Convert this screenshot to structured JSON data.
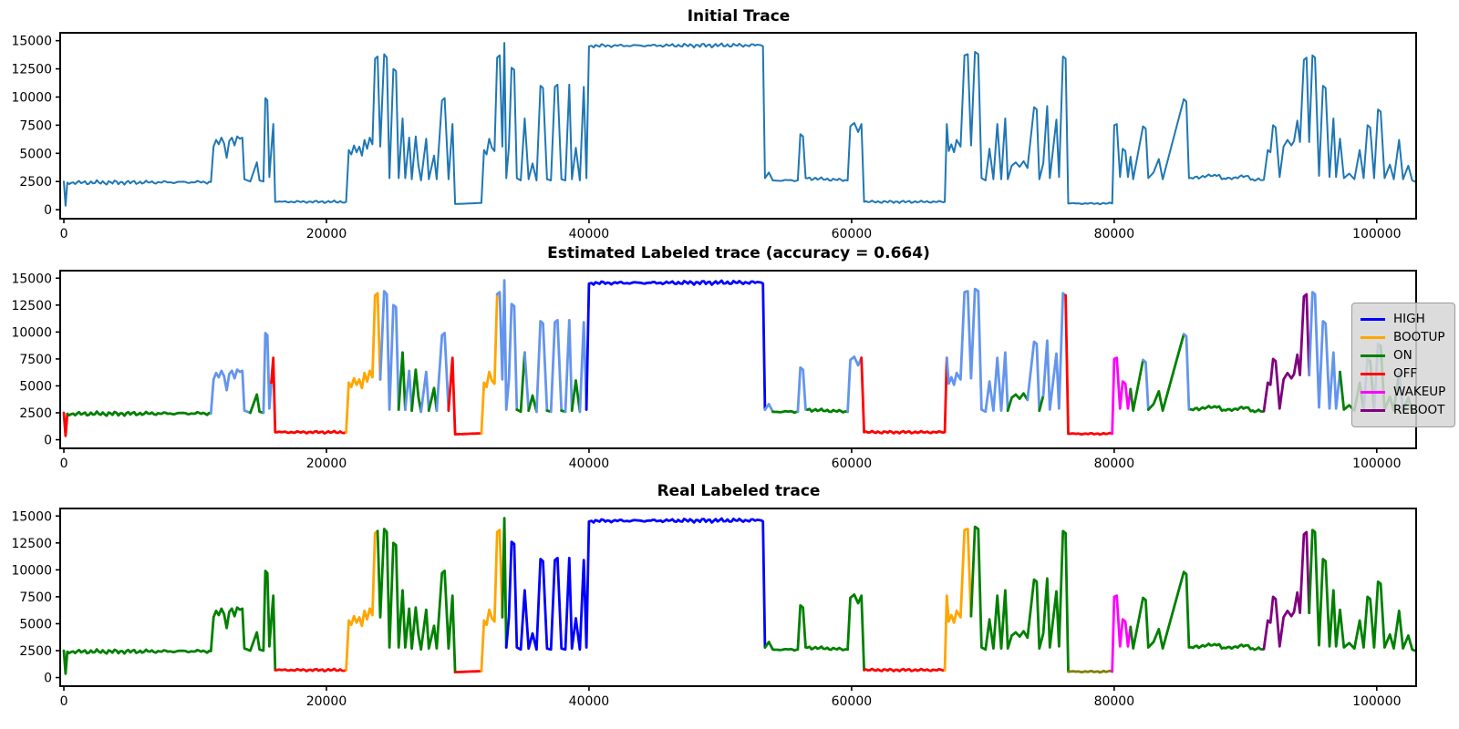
{
  "figure": {
    "background": "#ffffff"
  },
  "palette": {
    "steelblue": "#1f77b4",
    "blue": "#0000ff",
    "cornflower": "#6495ed",
    "green": "#008000",
    "red": "#ff0000",
    "orange": "#ffa500",
    "magenta": "#ff00ff",
    "purple": "#800080",
    "olive": "#808000"
  },
  "chart_data": {
    "type": "line",
    "xlim": [
      -280,
      103000
    ],
    "ylim": [
      -800,
      15700
    ],
    "xticks": {
      "values": [
        0,
        20000,
        40000,
        60000,
        80000,
        100000
      ],
      "labels": [
        "0",
        "20000",
        "40000",
        "60000",
        "80000",
        "100000"
      ]
    },
    "yticks": {
      "values": [
        0,
        2500,
        5000,
        7500,
        10000,
        12500,
        15000
      ],
      "labels": [
        "0",
        "2500",
        "5000",
        "7500",
        "10000",
        "12500",
        "15000"
      ]
    },
    "grid": false,
    "subplots": [
      {
        "title": "Initial Trace",
        "line_width": 2,
        "label_intervals": [
          [
            -280,
            103000,
            "steelblue"
          ]
        ]
      },
      {
        "title": "Estimated Labeled trace (accuracy = 0.664)",
        "accuracy": 0.664,
        "line_width": 2.8,
        "label_intervals": [
          [
            -280,
            280,
            "red"
          ],
          [
            280,
            11250,
            "green"
          ],
          [
            11250,
            14050,
            "cornflower"
          ],
          [
            14050,
            15150,
            "green"
          ],
          [
            15150,
            15750,
            "cornflower"
          ],
          [
            15750,
            21600,
            "red"
          ],
          [
            21600,
            24250,
            "orange"
          ],
          [
            24250,
            25650,
            "cornflower"
          ],
          [
            25650,
            26150,
            "green"
          ],
          [
            26150,
            26650,
            "cornflower"
          ],
          [
            26650,
            27400,
            "green"
          ],
          [
            27400,
            27950,
            "cornflower"
          ],
          [
            27950,
            28600,
            "green"
          ],
          [
            28600,
            29450,
            "cornflower"
          ],
          [
            29450,
            31900,
            "red"
          ],
          [
            31900,
            32950,
            "orange"
          ],
          [
            32950,
            34650,
            "cornflower"
          ],
          [
            34650,
            35000,
            "green"
          ],
          [
            35000,
            35550,
            "cornflower"
          ],
          [
            35550,
            36150,
            "green"
          ],
          [
            36150,
            36950,
            "cornflower"
          ],
          [
            36950,
            37250,
            "green"
          ],
          [
            37250,
            38050,
            "cornflower"
          ],
          [
            38050,
            38350,
            "green"
          ],
          [
            38350,
            38850,
            "cornflower"
          ],
          [
            38850,
            39450,
            "green"
          ],
          [
            39450,
            39900,
            "cornflower"
          ],
          [
            39900,
            53350,
            "blue"
          ],
          [
            53350,
            53900,
            "cornflower"
          ],
          [
            53900,
            56000,
            "green"
          ],
          [
            56000,
            56600,
            "cornflower"
          ],
          [
            56600,
            59800,
            "green"
          ],
          [
            59800,
            60850,
            "cornflower"
          ],
          [
            60850,
            67200,
            "red"
          ],
          [
            67200,
            72050,
            "cornflower"
          ],
          [
            72050,
            73600,
            "green"
          ],
          [
            73600,
            74250,
            "cornflower"
          ],
          [
            74250,
            74750,
            "green"
          ],
          [
            74750,
            76400,
            "cornflower"
          ],
          [
            76400,
            79800,
            "red"
          ],
          [
            79800,
            81350,
            "magenta"
          ],
          [
            81350,
            82050,
            "green"
          ],
          [
            82050,
            82700,
            "cornflower"
          ],
          [
            82700,
            85150,
            "green"
          ],
          [
            85150,
            85850,
            "cornflower"
          ],
          [
            85850,
            91550,
            "green"
          ],
          [
            91550,
            94950,
            "purple"
          ],
          [
            94950,
            97350,
            "cornflower"
          ],
          [
            97350,
            99150,
            "green"
          ],
          [
            99150,
            99650,
            "cornflower"
          ],
          [
            99650,
            99950,
            "green"
          ],
          [
            99950,
            100450,
            "cornflower"
          ],
          [
            100450,
            101550,
            "green"
          ],
          [
            101550,
            102150,
            "cornflower"
          ],
          [
            102150,
            103000,
            "green"
          ]
        ]
      },
      {
        "title": "Real Labeled trace",
        "line_width": 2.8,
        "label_intervals": [
          [
            -280,
            16120,
            "green"
          ],
          [
            16120,
            21600,
            "red"
          ],
          [
            21600,
            23950,
            "orange"
          ],
          [
            23950,
            29800,
            "green"
          ],
          [
            29800,
            31850,
            "red"
          ],
          [
            31850,
            33350,
            "orange"
          ],
          [
            33350,
            33650,
            "green"
          ],
          [
            33650,
            53400,
            "blue"
          ],
          [
            53400,
            60900,
            "green"
          ],
          [
            60900,
            67150,
            "red"
          ],
          [
            67150,
            69150,
            "orange"
          ],
          [
            69150,
            76420,
            "green"
          ],
          [
            76420,
            79850,
            "olive"
          ],
          [
            79850,
            81350,
            "magenta"
          ],
          [
            81350,
            91550,
            "green"
          ],
          [
            91550,
            94950,
            "purple"
          ],
          [
            94950,
            103000,
            "green"
          ]
        ]
      }
    ],
    "legend": {
      "location": "right of middle subplot",
      "entries": [
        {
          "label": "HIGH",
          "color": "blue"
        },
        {
          "label": "BOOTUP",
          "color": "orange"
        },
        {
          "label": "ON",
          "color": "green"
        },
        {
          "label": "OFF",
          "color": "red"
        },
        {
          "label": "WAKEUP",
          "color": "magenta"
        },
        {
          "label": "REBOOT",
          "color": "purple"
        }
      ]
    },
    "trace_points": [
      [
        0,
        2500
      ],
      [
        130,
        350
      ],
      [
        260,
        2400
      ],
      [
        11200,
        2450
      ],
      [
        11400,
        5600
      ],
      [
        11600,
        6200
      ],
      [
        11800,
        5800
      ],
      [
        12000,
        6400
      ],
      [
        12200,
        5900
      ],
      [
        12400,
        4600
      ],
      [
        12600,
        6100
      ],
      [
        12800,
        6400
      ],
      [
        13000,
        5700
      ],
      [
        13200,
        6500
      ],
      [
        13400,
        6300
      ],
      [
        13600,
        6400
      ],
      [
        13750,
        2700
      ],
      [
        14200,
        2500
      ],
      [
        14700,
        4200
      ],
      [
        14900,
        2600
      ],
      [
        15200,
        2500
      ],
      [
        15350,
        9900
      ],
      [
        15500,
        9700
      ],
      [
        15650,
        2900
      ],
      [
        15800,
        5300
      ],
      [
        15950,
        7600
      ],
      [
        16100,
        700
      ],
      [
        21500,
        700
      ],
      [
        21700,
        5300
      ],
      [
        21900,
        4900
      ],
      [
        22100,
        5700
      ],
      [
        22300,
        5100
      ],
      [
        22500,
        5600
      ],
      [
        22700,
        4800
      ],
      [
        22900,
        6200
      ],
      [
        23100,
        5400
      ],
      [
        23300,
        6400
      ],
      [
        23500,
        5800
      ],
      [
        23700,
        13400
      ],
      [
        23900,
        13600
      ],
      [
        24100,
        5600
      ],
      [
        24400,
        13800
      ],
      [
        24600,
        13500
      ],
      [
        24800,
        2800
      ],
      [
        25100,
        12500
      ],
      [
        25300,
        12300
      ],
      [
        25500,
        2800
      ],
      [
        25800,
        8100
      ],
      [
        26000,
        2800
      ],
      [
        26300,
        6400
      ],
      [
        26500,
        2700
      ],
      [
        26800,
        6500
      ],
      [
        27000,
        4000
      ],
      [
        27200,
        2600
      ],
      [
        27600,
        6300
      ],
      [
        27800,
        2700
      ],
      [
        28200,
        4800
      ],
      [
        28400,
        2700
      ],
      [
        28800,
        9700
      ],
      [
        29000,
        9900
      ],
      [
        29300,
        2700
      ],
      [
        29600,
        7600
      ],
      [
        29800,
        500
      ],
      [
        31800,
        600
      ],
      [
        32000,
        5300
      ],
      [
        32200,
        4900
      ],
      [
        32400,
        6300
      ],
      [
        32600,
        5500
      ],
      [
        32800,
        5200
      ],
      [
        33000,
        13500
      ],
      [
        33200,
        13700
      ],
      [
        33400,
        5600
      ],
      [
        33550,
        14800
      ],
      [
        33700,
        2800
      ],
      [
        33900,
        5600
      ],
      [
        34100,
        12600
      ],
      [
        34300,
        12400
      ],
      [
        34500,
        2800
      ],
      [
        34800,
        2600
      ],
      [
        35100,
        8100
      ],
      [
        35400,
        2700
      ],
      [
        35700,
        4100
      ],
      [
        36000,
        2600
      ],
      [
        36300,
        11000
      ],
      [
        36500,
        10800
      ],
      [
        36800,
        2700
      ],
      [
        37100,
        2600
      ],
      [
        37400,
        10900
      ],
      [
        37600,
        11100
      ],
      [
        37900,
        2700
      ],
      [
        38200,
        2600
      ],
      [
        38500,
        11100
      ],
      [
        38700,
        2700
      ],
      [
        39000,
        5500
      ],
      [
        39300,
        2600
      ],
      [
        39600,
        10900
      ],
      [
        39800,
        2800
      ],
      [
        40000,
        14500
      ],
      [
        40200,
        14550
      ],
      [
        53100,
        14600
      ],
      [
        53250,
        14500
      ],
      [
        53400,
        2800
      ],
      [
        53700,
        3300
      ],
      [
        54000,
        2600
      ],
      [
        55900,
        2600
      ],
      [
        56100,
        6700
      ],
      [
        56300,
        6500
      ],
      [
        56500,
        2800
      ],
      [
        59700,
        2600
      ],
      [
        59900,
        7400
      ],
      [
        60200,
        7700
      ],
      [
        60500,
        6900
      ],
      [
        60750,
        7600
      ],
      [
        60950,
        700
      ],
      [
        67100,
        700
      ],
      [
        67250,
        7600
      ],
      [
        67400,
        5200
      ],
      [
        67600,
        5800
      ],
      [
        67800,
        5100
      ],
      [
        68000,
        6200
      ],
      [
        68300,
        5600
      ],
      [
        68600,
        13700
      ],
      [
        68850,
        13800
      ],
      [
        69100,
        5700
      ],
      [
        69400,
        14000
      ],
      [
        69650,
        13800
      ],
      [
        69900,
        2800
      ],
      [
        70200,
        2600
      ],
      [
        70500,
        5400
      ],
      [
        70800,
        2700
      ],
      [
        71100,
        7600
      ],
      [
        71400,
        2700
      ],
      [
        71700,
        8100
      ],
      [
        71900,
        2700
      ],
      [
        72200,
        3900
      ],
      [
        72500,
        4200
      ],
      [
        72800,
        3800
      ],
      [
        73100,
        4300
      ],
      [
        73400,
        3700
      ],
      [
        73900,
        9100
      ],
      [
        74100,
        8900
      ],
      [
        74300,
        2700
      ],
      [
        74600,
        4100
      ],
      [
        74900,
        9200
      ],
      [
        75100,
        2800
      ],
      [
        75600,
        8000
      ],
      [
        75800,
        2900
      ],
      [
        76100,
        13600
      ],
      [
        76300,
        13400
      ],
      [
        76500,
        550
      ],
      [
        79850,
        550
      ],
      [
        80000,
        7500
      ],
      [
        80200,
        7600
      ],
      [
        80450,
        2900
      ],
      [
        80650,
        5400
      ],
      [
        80850,
        5200
      ],
      [
        81050,
        2900
      ],
      [
        81250,
        4700
      ],
      [
        81450,
        2700
      ],
      [
        82200,
        7400
      ],
      [
        82400,
        7200
      ],
      [
        82600,
        2800
      ],
      [
        83000,
        3300
      ],
      [
        83400,
        4500
      ],
      [
        83700,
        2700
      ],
      [
        85300,
        9800
      ],
      [
        85500,
        9600
      ],
      [
        85700,
        2800
      ],
      [
        88000,
        3100
      ],
      [
        88200,
        2700
      ],
      [
        90200,
        3000
      ],
      [
        90400,
        2650
      ],
      [
        91400,
        2650
      ],
      [
        91700,
        5300
      ],
      [
        91900,
        5100
      ],
      [
        92100,
        7500
      ],
      [
        92300,
        7300
      ],
      [
        92600,
        2900
      ],
      [
        92900,
        5600
      ],
      [
        93200,
        6200
      ],
      [
        93500,
        5700
      ],
      [
        93700,
        6100
      ],
      [
        93950,
        7900
      ],
      [
        94150,
        6000
      ],
      [
        94450,
        13300
      ],
      [
        94650,
        13500
      ],
      [
        94850,
        6000
      ],
      [
        95100,
        13700
      ],
      [
        95300,
        13500
      ],
      [
        95600,
        3000
      ],
      [
        95900,
        11000
      ],
      [
        96100,
        10800
      ],
      [
        96400,
        2900
      ],
      [
        96700,
        8100
      ],
      [
        96900,
        2900
      ],
      [
        97200,
        6300
      ],
      [
        97500,
        2800
      ],
      [
        97900,
        3200
      ],
      [
        98300,
        2700
      ],
      [
        98700,
        5300
      ],
      [
        99000,
        2800
      ],
      [
        99300,
        7500
      ],
      [
        99500,
        7300
      ],
      [
        99800,
        2800
      ],
      [
        100100,
        8900
      ],
      [
        100300,
        8700
      ],
      [
        100600,
        2800
      ],
      [
        101000,
        4000
      ],
      [
        101300,
        2700
      ],
      [
        101700,
        6200
      ],
      [
        102000,
        2700
      ],
      [
        102400,
        3900
      ],
      [
        102700,
        2600
      ],
      [
        102900,
        2500
      ]
    ],
    "noise_regions": [
      {
        "x0": 350,
        "x1": 11100,
        "amp": 160
      },
      {
        "x0": 16300,
        "x1": 21400,
        "amp": 90
      },
      {
        "x0": 40300,
        "x1": 53000,
        "amp": 150
      },
      {
        "x0": 54100,
        "x1": 55800,
        "amp": 120
      },
      {
        "x0": 56700,
        "x1": 59600,
        "amp": 120
      },
      {
        "x0": 61100,
        "x1": 67000,
        "amp": 90
      },
      {
        "x0": 76700,
        "x1": 79750,
        "amp": 70
      },
      {
        "x0": 83900,
        "x1": 85100,
        "amp": 100
      },
      {
        "x0": 85900,
        "x1": 91300,
        "amp": 130
      },
      {
        "x0": 97600,
        "x1": 98500,
        "amp": 110
      }
    ]
  }
}
